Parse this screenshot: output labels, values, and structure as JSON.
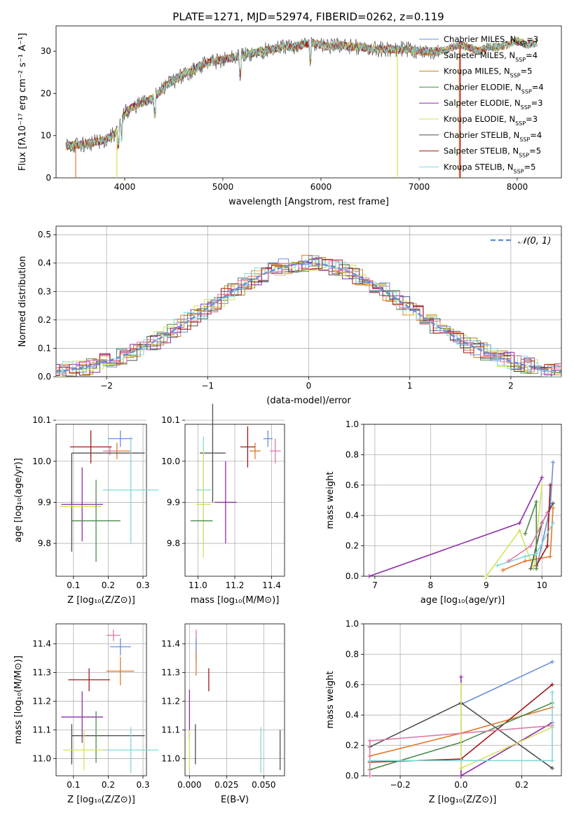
{
  "colors": {
    "series": [
      "#6a8fd8",
      "#e07a2a",
      "#b8860b",
      "#4e8a4e",
      "#8e2ea6",
      "#d4e25a",
      "#505050",
      "#a01818",
      "#7fd8d8"
    ],
    "pink": "#e07aa8",
    "grid": "#b0b0b0"
  },
  "chart_data": [
    {
      "type": "line",
      "id": "spectrum",
      "title": "PLATE=1271, MJD=52974, FIBERID=0262, z=0.119",
      "xlabel": "wavelength [Angstrom, rest frame]",
      "ylabel": "Flux [fλ10⁻¹⁷ erg cm⁻² s⁻¹ A⁻¹]",
      "xlim": [
        3300,
        8450
      ],
      "ylim": [
        0,
        36
      ],
      "xticks": [
        "4000",
        "5000",
        "6000",
        "7000",
        "8000"
      ],
      "yticks": [
        "0",
        "10",
        "20",
        "30"
      ],
      "continuum": {
        "x": [
          3400,
          3500,
          3650,
          3800,
          3900,
          3950,
          4000,
          4100,
          4200,
          4300,
          4400,
          4500,
          4600,
          4700,
          4800,
          4900,
          5000,
          5100,
          5200,
          5300,
          5400,
          5500,
          5600,
          5700,
          5800,
          5900,
          6000,
          6100,
          6200,
          6300,
          6400,
          6500,
          6600,
          6700,
          6800,
          6900,
          7000,
          7100,
          7200,
          7300,
          7400,
          7500,
          7600,
          7700,
          7800,
          7900,
          8000,
          8100,
          8200
        ],
        "y": [
          7.5,
          7.8,
          8.2,
          9.0,
          10.5,
          12.5,
          15.5,
          17.0,
          18.0,
          19.0,
          21.5,
          23.0,
          24.5,
          25.5,
          27.0,
          27.5,
          28.0,
          28.5,
          29.0,
          29.5,
          30.0,
          30.5,
          31.0,
          31.0,
          31.5,
          32.0,
          31.5,
          31.0,
          31.5,
          31.0,
          31.0,
          30.5,
          30.5,
          30.5,
          30.5,
          30.5,
          30.0,
          30.0,
          30.0,
          30.5,
          31.5,
          31.0,
          30.0,
          31.0,
          31.0,
          31.5,
          32.5,
          31.5,
          32.0
        ]
      },
      "legend": [
        {
          "label": "Chabrier MILES, N",
          "sub": "SSP",
          "val": "=3"
        },
        {
          "label": "Salpeter MILES, N",
          "sub": "SSP",
          "val": "=4"
        },
        {
          "label": "Kroupa MILES, N",
          "sub": "SSP",
          "val": "=5"
        },
        {
          "label": "Chabrier ELODIE, N",
          "sub": "SSP",
          "val": "=4"
        },
        {
          "label": "Salpeter ELODIE, N",
          "sub": "SSP",
          "val": "=3"
        },
        {
          "label": "Kroupa ELODIE, N",
          "sub": "SSP",
          "val": "=3"
        },
        {
          "label": "Chabrier STELIB, N",
          "sub": "SSP",
          "val": "=4"
        },
        {
          "label": "Salpeter STELIB, N",
          "sub": "SSP",
          "val": "=5"
        },
        {
          "label": "Kroupa STELIB, N",
          "sub": "SSP",
          "val": "=5"
        }
      ]
    },
    {
      "type": "histogram",
      "id": "residuals",
      "xlabel": "(data-model)/error",
      "ylabel": "Normed distribution",
      "xlim": [
        -2.5,
        2.5
      ],
      "ylim": [
        0,
        0.53
      ],
      "xticks": [
        "−2",
        "−1",
        "0",
        "1",
        "2"
      ],
      "yticks": [
        "0.0",
        "0.1",
        "0.2",
        "0.3",
        "0.4",
        "0.5"
      ],
      "legend": "𝒩(0, 1)"
    },
    {
      "type": "scatter",
      "id": "age-vs-Z",
      "xlabel": "Z [log₁₀(Z/Z⊙)]",
      "ylabel": "age  [log₁₀(age/yr)]",
      "xlim": [
        0.05,
        0.31
      ],
      "ylim": [
        9.72,
        10.09
      ],
      "xticks": [
        "0.1",
        "0.2",
        "0.3"
      ],
      "yticks": [
        "9.8",
        "9.9",
        "10.0",
        "10.1"
      ],
      "points": [
        {
          "x": 0.235,
          "y": 10.055,
          "xe": 0.035,
          "ye": 0.02,
          "c": 0
        },
        {
          "x": 0.225,
          "y": 10.025,
          "xe": 0.04,
          "ye": 0.02,
          "c": 1
        },
        {
          "x": 0.205,
          "y": 10.025,
          "xe": 0.02,
          "ye": 0.01,
          "c": 9
        },
        {
          "x": 0.15,
          "y": 10.035,
          "xe": 0.06,
          "ye": 0.04,
          "c": 7
        },
        {
          "x": 0.2,
          "y": 10.02,
          "xe": 0.105,
          "ye": 0.0,
          "c": 6
        },
        {
          "x": 0.095,
          "y": 9.9,
          "xe": 0.0,
          "ye": 0.12,
          "c": 6
        },
        {
          "x": 0.125,
          "y": 9.895,
          "xe": 0.06,
          "ye": 0.09,
          "c": 4
        },
        {
          "x": 0.12,
          "y": 9.89,
          "xe": 0.06,
          "ye": 0.0,
          "c": 5
        },
        {
          "x": 0.265,
          "y": 9.93,
          "xe": 0.08,
          "ye": 0.13,
          "c": 8
        },
        {
          "x": 0.165,
          "y": 9.855,
          "xe": 0.07,
          "ye": 0.1,
          "c": 3
        }
      ]
    },
    {
      "type": "scatter",
      "id": "age-vs-mass",
      "xlabel": "mass [log₁₀(M/M⊙)]",
      "ylabel": "",
      "xlim": [
        10.93,
        11.47
      ],
      "ylim": [
        9.72,
        10.09
      ],
      "xticks": [
        "11.0",
        "11.2",
        "11.4"
      ],
      "yticks": [
        "9.8",
        "9.9",
        "10.0",
        "10.1"
      ],
      "points": [
        {
          "x": 11.38,
          "y": 10.055,
          "xe": 0.025,
          "ye": 0.02,
          "c": 0
        },
        {
          "x": 11.42,
          "y": 10.025,
          "xe": 0.03,
          "ye": 0.03,
          "c": 9
        },
        {
          "x": 11.31,
          "y": 10.025,
          "xe": 0.03,
          "ye": 0.02,
          "c": 1
        },
        {
          "x": 11.27,
          "y": 10.035,
          "xe": 0.04,
          "ye": 0.05,
          "c": 7
        },
        {
          "x": 11.08,
          "y": 10.02,
          "xe": 0.07,
          "ye": 0.12,
          "c": 6
        },
        {
          "x": 11.15,
          "y": 9.9,
          "xe": 0.06,
          "ye": 0.1,
          "c": 4
        },
        {
          "x": 11.03,
          "y": 9.93,
          "xe": 0.04,
          "ye": 0.13,
          "c": 8
        },
        {
          "x": 11.03,
          "y": 9.895,
          "xe": 0.04,
          "ye": 0.13,
          "c": 5
        },
        {
          "x": 11.02,
          "y": 9.855,
          "xe": 0.06,
          "ye": 0.0,
          "c": 3
        }
      ]
    },
    {
      "type": "line",
      "id": "massweight-vs-age",
      "xlabel": "age  [log₁₀(age/yr)]",
      "ylabel": "mass weight",
      "xlim": [
        6.8,
        10.35
      ],
      "ylim": [
        0,
        1.0
      ],
      "xticks": [
        "7",
        "8",
        "9",
        "10"
      ],
      "yticks": [
        "0.0",
        "0.2",
        "0.4",
        "0.6",
        "0.8",
        "1.0"
      ]
    },
    {
      "type": "scatter",
      "id": "mass-vs-Z",
      "xlabel": "Z [log₁₀(Z/Z⊙)]",
      "ylabel": "mass [log₁₀(M/M⊙)]",
      "xlim": [
        0.05,
        0.31
      ],
      "ylim": [
        10.94,
        11.47
      ],
      "xticks": [
        "0.1",
        "0.2",
        "0.3"
      ],
      "yticks": [
        "11.0",
        "11.1",
        "11.2",
        "11.3",
        "11.4"
      ],
      "points": [
        {
          "x": 0.215,
          "y": 11.43,
          "xe": 0.02,
          "ye": 0.02,
          "c": 9
        },
        {
          "x": 0.235,
          "y": 11.39,
          "xe": 0.03,
          "ye": 0.03,
          "c": 0
        },
        {
          "x": 0.235,
          "y": 11.305,
          "xe": 0.04,
          "ye": 0.05,
          "c": 1
        },
        {
          "x": 0.145,
          "y": 11.275,
          "xe": 0.06,
          "ye": 0.04,
          "c": 7
        },
        {
          "x": 0.125,
          "y": 11.145,
          "xe": 0.06,
          "ye": 0.09,
          "c": 4
        },
        {
          "x": 0.2,
          "y": 11.08,
          "xe": 0.105,
          "ye": 0.0,
          "c": 6
        },
        {
          "x": 0.095,
          "y": 11.05,
          "xe": 0.0,
          "ye": 0.07,
          "c": 6
        },
        {
          "x": 0.165,
          "y": 11.075,
          "xe": 0.0,
          "ye": 0.09,
          "c": 3
        },
        {
          "x": 0.265,
          "y": 11.03,
          "xe": 0.08,
          "ye": 0.08,
          "c": 8
        },
        {
          "x": 0.13,
          "y": 11.03,
          "xe": 0.06,
          "ye": 0.07,
          "c": 5
        }
      ]
    },
    {
      "type": "scatter",
      "id": "mass-vs-ebv",
      "xlabel": "E(B-V)",
      "ylabel": "",
      "xlim": [
        -0.003,
        0.064
      ],
      "ylim": [
        10.94,
        11.47
      ],
      "xticks": [
        "0.000",
        "0.025",
        "0.050"
      ],
      "yticks": [
        "11.0",
        "11.1",
        "11.2",
        "11.3",
        "11.4"
      ],
      "points": [
        {
          "x": 0.0045,
          "y": 11.4,
          "xe": 0,
          "ye": 0.05,
          "c": 9
        },
        {
          "x": 0.0045,
          "y": 11.38,
          "xe": 0,
          "ye": 0.04,
          "c": 0
        },
        {
          "x": 0.0045,
          "y": 11.33,
          "xe": 0,
          "ye": 0.04,
          "c": 1
        },
        {
          "x": 0.013,
          "y": 11.275,
          "xe": 0,
          "ye": 0.04,
          "c": 7
        },
        {
          "x": 0.0,
          "y": 11.15,
          "xe": 0,
          "ye": 0.09,
          "c": 4
        },
        {
          "x": 0.004,
          "y": 11.05,
          "xe": 0,
          "ye": 0.07,
          "c": 6
        },
        {
          "x": 0.0,
          "y": 11.03,
          "xe": 0,
          "ye": 0.07,
          "c": 5
        },
        {
          "x": 0.048,
          "y": 11.03,
          "xe": 0,
          "ye": 0.08,
          "c": 8
        },
        {
          "x": 0.061,
          "y": 11.03,
          "xe": 0,
          "ye": 0.07,
          "c": 6
        }
      ]
    },
    {
      "type": "line",
      "id": "massweight-vs-Z",
      "xlabel": "Z [log₁₀(Z/Z⊙)]",
      "ylabel": "mass weight",
      "xlim": [
        -0.32,
        0.33
      ],
      "ylim": [
        0,
        1.0
      ],
      "xticks": [
        "−0.2",
        "0.0",
        "0.2"
      ],
      "yticks": [
        "0.0",
        "0.2",
        "0.4",
        "0.6",
        "0.8",
        "1.0"
      ]
    }
  ]
}
